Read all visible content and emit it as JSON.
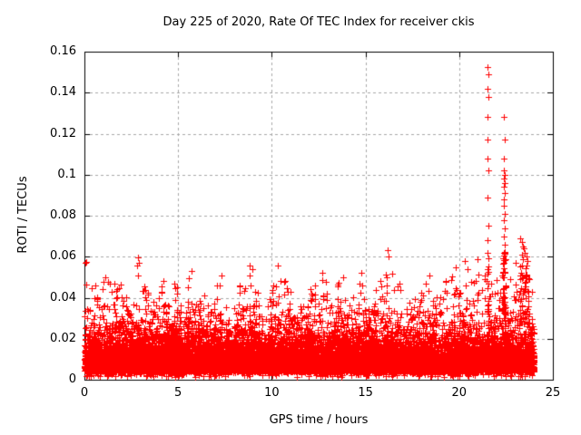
{
  "figure": {
    "background": "#ffffff"
  },
  "chart_data": {
    "type": "scatter",
    "title": "Day 225 of 2020, Rate Of TEC Index for receiver ckis",
    "xlabel": "GPS time / hours",
    "ylabel": "ROTI / TECUs",
    "xlim": [
      0,
      25
    ],
    "ylim": [
      0,
      0.16
    ],
    "xticks": [
      0,
      5,
      10,
      15,
      20,
      25
    ],
    "xtick_labels": [
      "0",
      "5",
      "10",
      "15",
      "20",
      "25"
    ],
    "yticks": [
      0,
      0.02,
      0.04,
      0.06,
      0.08,
      0.1,
      0.12,
      0.14,
      0.16
    ],
    "ytick_labels": [
      "0",
      "0.02",
      "0.04",
      "0.06",
      "0.08",
      "0.1",
      "0.12",
      "0.14",
      "0.16"
    ],
    "grid": {
      "show": true,
      "style": "dashed",
      "color": "#a8a8a8"
    },
    "legend": {
      "show": false
    },
    "marker": {
      "shape": "plus",
      "color": "#ff0000",
      "size": 7
    },
    "axis_color": "#000000",
    "data_time_range_hours": [
      0,
      24
    ],
    "baseline": {
      "description": "dense ROTI background scatter, most values 0.004-0.035 TECU",
      "seed": 42,
      "n": 15000,
      "t_min": 0,
      "t_max": 24,
      "floor": 0.004,
      "exp_scale": 0.0065,
      "bin_hours": 0.5,
      "envelope": [
        0.05,
        0.046,
        0.05,
        0.047,
        0.042,
        0.057,
        0.046,
        0.04,
        0.048,
        0.047,
        0.04,
        0.052,
        0.043,
        0.039,
        0.05,
        0.044,
        0.046,
        0.054,
        0.043,
        0.041,
        0.054,
        0.048,
        0.037,
        0.039,
        0.046,
        0.05,
        0.037,
        0.048,
        0.043,
        0.05,
        0.037,
        0.048,
        0.06,
        0.047,
        0.039,
        0.043,
        0.05,
        0.041,
        0.048,
        0.054,
        0.056,
        0.048,
        0.056,
        0.052,
        0.056,
        0.052,
        0.062,
        0.058
      ]
    },
    "peaks": [
      [
        0.05,
        0.057
      ],
      [
        0.09,
        0.0575
      ],
      [
        0.6,
        0.046
      ],
      [
        1.1,
        0.05
      ],
      [
        1.6,
        0.047
      ],
      [
        2.88,
        0.0598
      ],
      [
        2.92,
        0.057
      ],
      [
        4.2,
        0.048
      ],
      [
        4.8,
        0.047
      ],
      [
        5.7,
        0.053
      ],
      [
        7.3,
        0.051
      ],
      [
        8.3,
        0.046
      ],
      [
        8.8,
        0.0555
      ],
      [
        9.1,
        0.043
      ],
      [
        10.3,
        0.0555
      ],
      [
        10.7,
        0.048
      ],
      [
        12.3,
        0.046
      ],
      [
        12.7,
        0.052
      ],
      [
        13.8,
        0.05
      ],
      [
        14.8,
        0.052
      ],
      [
        15.8,
        0.048
      ],
      [
        16.18,
        0.063
      ],
      [
        16.22,
        0.06
      ],
      [
        16.8,
        0.047
      ],
      [
        18.4,
        0.051
      ],
      [
        19.3,
        0.048
      ],
      [
        19.8,
        0.055
      ],
      [
        20.3,
        0.058
      ],
      [
        20.9,
        0.048
      ],
      [
        21.0,
        0.059
      ],
      [
        21.51,
        0.1525
      ],
      [
        21.54,
        0.149
      ],
      [
        21.52,
        0.142
      ],
      [
        21.55,
        0.138
      ],
      [
        21.51,
        0.128
      ],
      [
        21.53,
        0.117
      ],
      [
        21.5,
        0.108
      ],
      [
        21.54,
        0.102
      ],
      [
        21.52,
        0.089
      ],
      [
        21.55,
        0.075
      ],
      [
        21.53,
        0.068
      ],
      [
        21.51,
        0.062
      ],
      [
        22.38,
        0.128
      ],
      [
        22.42,
        0.117
      ],
      [
        22.4,
        0.108
      ],
      [
        22.39,
        0.102
      ],
      [
        22.41,
        0.1
      ],
      [
        22.37,
        0.098
      ],
      [
        22.43,
        0.096
      ],
      [
        22.38,
        0.094
      ],
      [
        22.42,
        0.091
      ],
      [
        22.4,
        0.088
      ],
      [
        22.36,
        0.085
      ],
      [
        22.44,
        0.081
      ],
      [
        22.39,
        0.078
      ],
      [
        22.41,
        0.074
      ],
      [
        22.38,
        0.07
      ],
      [
        22.42,
        0.066
      ],
      [
        22.4,
        0.062
      ],
      [
        23.28,
        0.069
      ],
      [
        23.33,
        0.067
      ],
      [
        23.38,
        0.065
      ],
      [
        23.35,
        0.061
      ],
      [
        23.45,
        0.064
      ],
      [
        23.42,
        0.059
      ],
      [
        23.52,
        0.062
      ],
      [
        23.58,
        0.06
      ],
      [
        23.62,
        0.058
      ]
    ],
    "spike_clusters": [
      {
        "t": 21.53,
        "halfwidth": 0.05,
        "n": 20,
        "ymin": 0.025,
        "ymax": 0.06
      },
      {
        "t": 22.4,
        "halfwidth": 0.07,
        "n": 38,
        "ymin": 0.025,
        "ymax": 0.063
      },
      {
        "t": 23.4,
        "halfwidth": 0.18,
        "n": 30,
        "ymin": 0.025,
        "ymax": 0.056
      },
      {
        "t": 23.62,
        "halfwidth": 0.1,
        "n": 14,
        "ymin": 0.025,
        "ymax": 0.052
      }
    ]
  }
}
